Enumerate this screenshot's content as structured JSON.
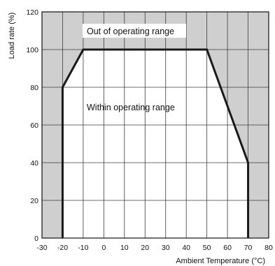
{
  "chart_data": {
    "type": "area",
    "title": "",
    "xlabel": "Ambient Temperature (°C)",
    "ylabel": "Load rate (%)",
    "xlim": [
      -30,
      80
    ],
    "ylim": [
      0,
      120
    ],
    "x_ticks": [
      -30,
      -20,
      -10,
      0,
      10,
      20,
      30,
      40,
      50,
      60,
      70,
      80
    ],
    "y_ticks": [
      0,
      20,
      40,
      60,
      80,
      100,
      120
    ],
    "grid": true,
    "series": [
      {
        "x": [
          -20,
          -20,
          -10,
          50,
          70,
          70
        ],
        "y": [
          0,
          80,
          100,
          100,
          40,
          0
        ]
      }
    ],
    "regions": {
      "outside": "Out of operating range",
      "inside": "Within operating range"
    },
    "colors": {
      "outside_fill": "#cfcfcf",
      "inside_fill": "#ffffff",
      "line": "#1a1a1a",
      "grid": "#3a3a3a"
    }
  }
}
